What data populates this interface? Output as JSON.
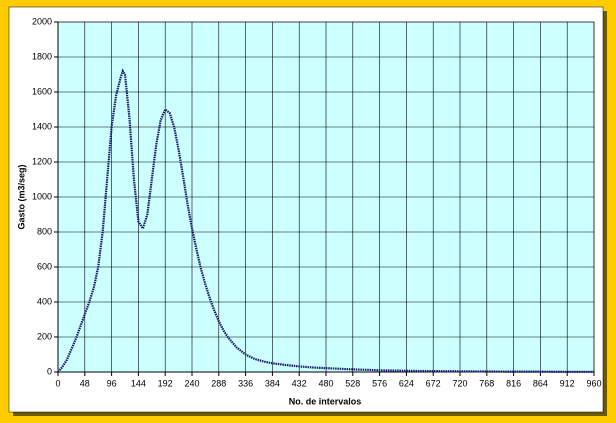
{
  "chart_data": {
    "type": "line",
    "xlabel": "No. de intervalos",
    "ylabel": "Gasto (m3/seg)",
    "x": [
      0,
      8,
      16,
      24,
      32,
      40,
      48,
      56,
      64,
      72,
      80,
      88,
      96,
      104,
      112,
      116,
      120,
      128,
      136,
      144,
      152,
      160,
      168,
      176,
      184,
      192,
      200,
      208,
      216,
      224,
      232,
      240,
      248,
      256,
      264,
      272,
      280,
      288,
      296,
      304,
      320,
      336,
      352,
      368,
      384,
      408,
      432,
      456,
      480,
      528,
      576,
      624,
      672,
      720,
      768,
      816,
      864,
      912,
      960
    ],
    "series": [
      {
        "color": "#1a1a6e",
        "values": [
          0,
          30,
          70,
          130,
          190,
          260,
          330,
          400,
          480,
          600,
          800,
          1100,
          1400,
          1580,
          1680,
          1720,
          1700,
          1450,
          1100,
          860,
          820,
          900,
          1100,
          1300,
          1440,
          1500,
          1480,
          1400,
          1270,
          1120,
          960,
          820,
          700,
          590,
          500,
          420,
          350,
          290,
          240,
          200,
          140,
          100,
          75,
          60,
          50,
          40,
          32,
          26,
          22,
          15,
          10,
          7,
          5,
          4,
          3,
          2,
          2,
          1,
          1
        ]
      }
    ],
    "xlim": [
      0,
      960
    ],
    "xticks": [
      0,
      48,
      96,
      144,
      192,
      240,
      288,
      336,
      384,
      432,
      480,
      528,
      576,
      624,
      672,
      720,
      768,
      816,
      864,
      912,
      960
    ],
    "ylim": [
      0,
      2000
    ],
    "yticks": [
      0,
      200,
      400,
      600,
      800,
      1000,
      1200,
      1400,
      1600,
      1800,
      2000
    ],
    "grid": true,
    "plot_color": "#ccffff"
  }
}
